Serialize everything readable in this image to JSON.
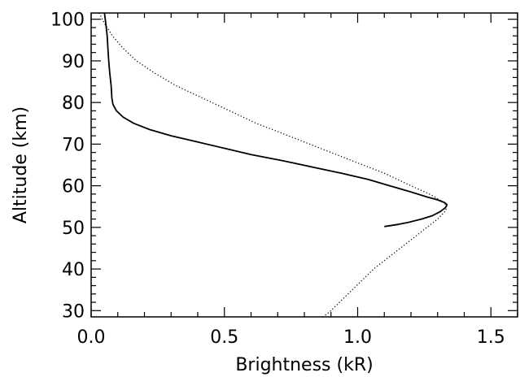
{
  "chart_data": {
    "type": "line",
    "title": "",
    "xlabel": "Brightness (kR)",
    "ylabel": "Altitude (km)",
    "xlim": [
      0.0,
      1.6
    ],
    "ylim": [
      28.5,
      101.5
    ],
    "xticks": [
      0.0,
      0.5,
      1.0,
      1.5
    ],
    "xtick_labels": [
      "0.0",
      "0.5",
      "1.0",
      "1.5"
    ],
    "yticks": [
      30,
      40,
      50,
      60,
      70,
      80,
      90,
      100
    ],
    "ytick_labels": [
      "30",
      "40",
      "50",
      "60",
      "70",
      "80",
      "90",
      "100"
    ],
    "grid": false,
    "legend": "none",
    "series": [
      {
        "style": "solid",
        "color": "#000000",
        "points": [
          [
            0.05,
            101.5
          ],
          [
            0.055,
            99
          ],
          [
            0.06,
            96
          ],
          [
            0.063,
            93
          ],
          [
            0.066,
            90
          ],
          [
            0.07,
            87
          ],
          [
            0.075,
            84
          ],
          [
            0.078,
            81
          ],
          [
            0.082,
            79.5
          ],
          [
            0.095,
            78
          ],
          [
            0.12,
            76.5
          ],
          [
            0.16,
            75
          ],
          [
            0.22,
            73.5
          ],
          [
            0.3,
            72
          ],
          [
            0.4,
            70.5
          ],
          [
            0.5,
            69
          ],
          [
            0.6,
            67.5
          ],
          [
            0.72,
            66
          ],
          [
            0.83,
            64.5
          ],
          [
            0.94,
            63
          ],
          [
            1.04,
            61.5
          ],
          [
            1.12,
            60
          ],
          [
            1.2,
            58.5
          ],
          [
            1.26,
            57.3
          ],
          [
            1.3,
            56.6
          ],
          [
            1.325,
            56
          ],
          [
            1.335,
            55.5
          ],
          [
            1.33,
            54.8
          ],
          [
            1.31,
            53.8
          ],
          [
            1.28,
            52.8
          ],
          [
            1.24,
            52
          ],
          [
            1.19,
            51.2
          ],
          [
            1.15,
            50.7
          ],
          [
            1.12,
            50.4
          ],
          [
            1.1,
            50.2
          ]
        ]
      },
      {
        "style": "dotted",
        "color": "#000000",
        "points": [
          [
            0.03,
            101.5
          ],
          [
            0.05,
            99
          ],
          [
            0.08,
            96
          ],
          [
            0.12,
            93
          ],
          [
            0.17,
            90
          ],
          [
            0.24,
            87
          ],
          [
            0.32,
            84
          ],
          [
            0.42,
            81
          ],
          [
            0.52,
            78
          ],
          [
            0.62,
            75
          ],
          [
            0.74,
            72
          ],
          [
            0.86,
            69
          ],
          [
            0.98,
            66
          ],
          [
            1.1,
            63
          ],
          [
            1.2,
            60
          ],
          [
            1.27,
            58
          ],
          [
            1.31,
            56.5
          ],
          [
            1.335,
            55.3
          ],
          [
            1.33,
            54
          ],
          [
            1.3,
            52
          ],
          [
            1.26,
            50
          ],
          [
            1.21,
            47.5
          ],
          [
            1.16,
            45
          ],
          [
            1.11,
            42.5
          ],
          [
            1.06,
            40
          ],
          [
            1.02,
            37.5
          ],
          [
            0.98,
            35
          ],
          [
            0.94,
            32.5
          ],
          [
            0.9,
            30
          ],
          [
            0.87,
            28.5
          ]
        ]
      }
    ]
  }
}
